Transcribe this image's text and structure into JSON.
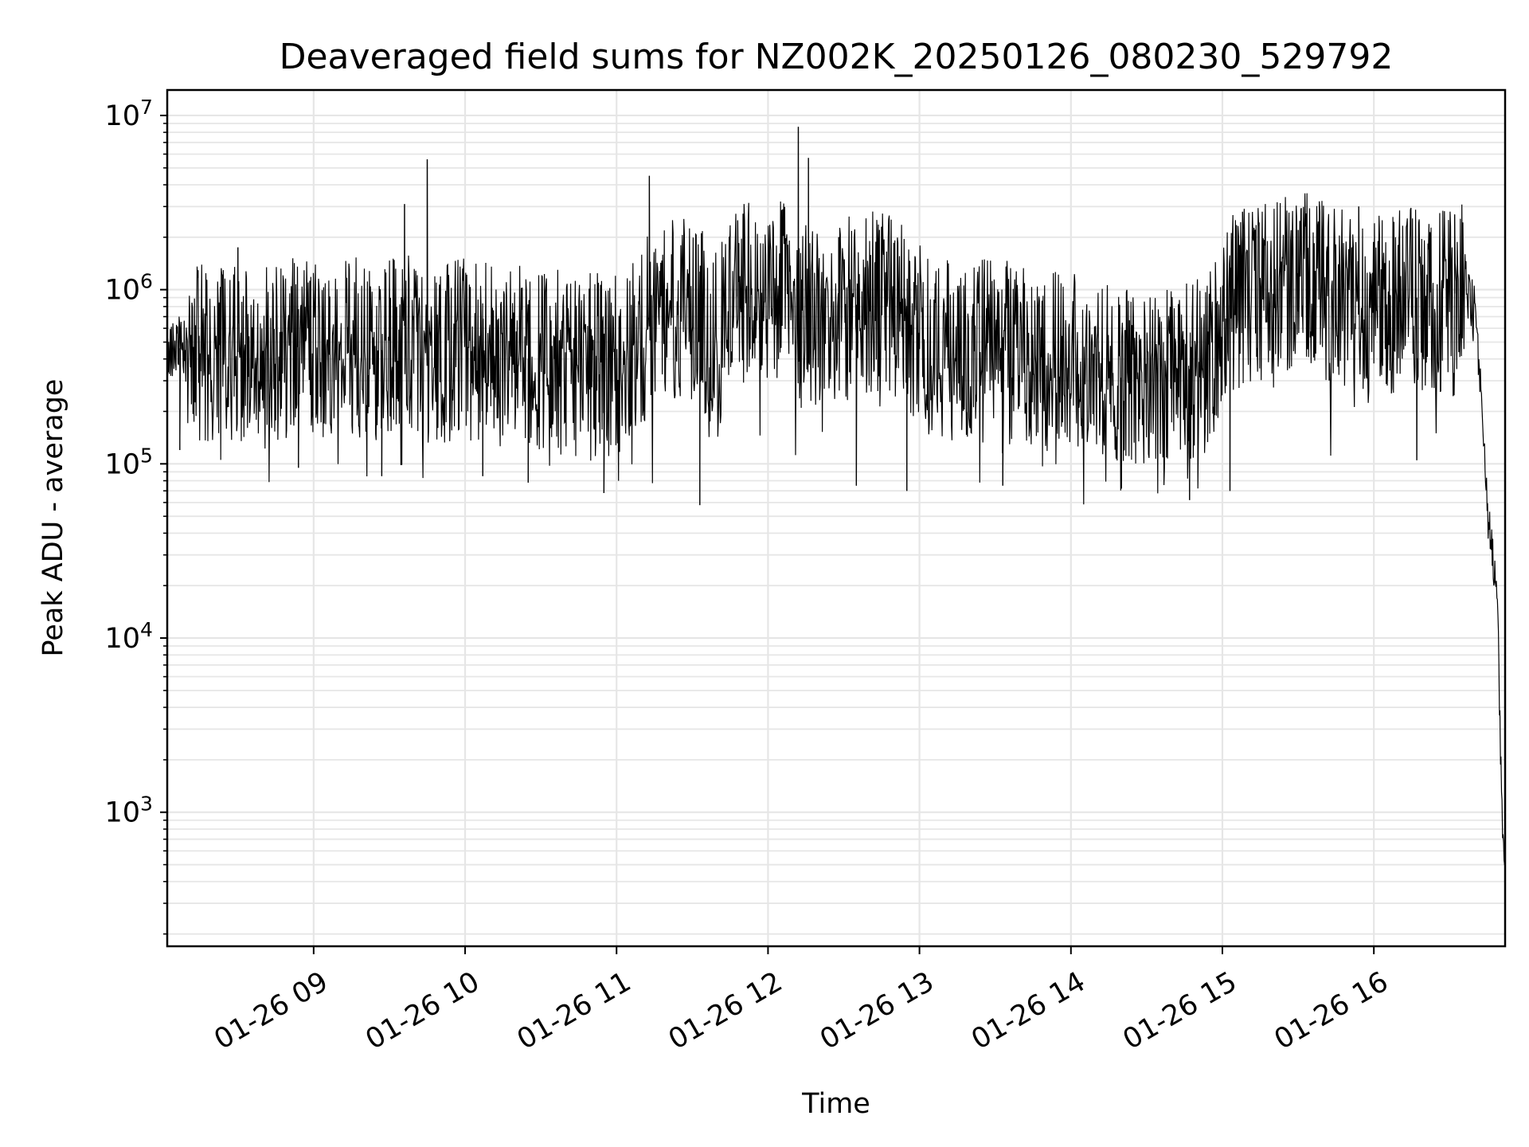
{
  "chart_data": {
    "type": "line",
    "title": "Deaveraged field sums for NZ002K_20250126_080230_529792",
    "xlabel": "Time",
    "ylabel": "Peak ADU - average",
    "yscale": "log",
    "grid": true,
    "line_color": "#000000",
    "grid_color": "#e6e6e6",
    "xlim": [
      "2025-01-26 08:02",
      "2025-01-26 16:52"
    ],
    "ylim": [
      170,
      14000000
    ],
    "x_ticks": [
      "01-26 09",
      "01-26 10",
      "01-26 11",
      "01-26 12",
      "01-26 13",
      "01-26 14",
      "01-26 15",
      "01-26 16"
    ],
    "x_tick_times": [
      "2025-01-26 09:00",
      "2025-01-26 10:00",
      "2025-01-26 11:00",
      "2025-01-26 12:00",
      "2025-01-26 13:00",
      "2025-01-26 14:00",
      "2025-01-26 15:00",
      "2025-01-26 16:00"
    ],
    "y_ticks": [
      {
        "value": 1000,
        "base": "10",
        "exp": "3"
      },
      {
        "value": 10000,
        "base": "10",
        "exp": "4"
      },
      {
        "value": 100000,
        "base": "10",
        "exp": "5"
      },
      {
        "value": 1000000,
        "base": "10",
        "exp": "6"
      },
      {
        "value": 10000000,
        "base": "10",
        "exp": "7"
      }
    ],
    "series": [
      {
        "x": [
          "2025-01-26 08:02",
          "2025-01-26 08:10",
          "2025-01-26 08:17",
          "2025-01-26 08:20",
          "2025-01-26 08:25",
          "2025-01-26 08:32",
          "2025-01-26 08:40",
          "2025-01-26 08:47",
          "2025-01-26 08:55",
          "2025-01-26 09:02",
          "2025-01-26 09:10",
          "2025-01-26 09:17",
          "2025-01-26 09:25",
          "2025-01-26 09:32",
          "2025-01-26 09:36",
          "2025-01-26 09:40",
          "2025-01-26 09:44",
          "2025-01-26 09:50",
          "2025-01-26 09:57",
          "2025-01-26 10:05",
          "2025-01-26 10:12",
          "2025-01-26 10:20",
          "2025-01-26 10:27",
          "2025-01-26 10:35",
          "2025-01-26 10:42",
          "2025-01-26 10:50",
          "2025-01-26 10:57",
          "2025-01-26 11:05",
          "2025-01-26 11:12",
          "2025-01-26 11:18",
          "2025-01-26 11:25",
          "2025-01-26 11:32",
          "2025-01-26 11:40",
          "2025-01-26 11:47",
          "2025-01-26 11:55",
          "2025-01-26 12:02",
          "2025-01-26 12:10",
          "2025-01-26 12:13",
          "2025-01-26 12:17",
          "2025-01-26 12:25",
          "2025-01-26 12:32",
          "2025-01-26 12:40",
          "2025-01-26 12:47",
          "2025-01-26 12:55",
          "2025-01-26 13:02",
          "2025-01-26 13:10",
          "2025-01-26 13:17",
          "2025-01-26 13:25",
          "2025-01-26 13:32",
          "2025-01-26 13:40",
          "2025-01-26 13:47",
          "2025-01-26 13:55",
          "2025-01-26 14:02",
          "2025-01-26 14:10",
          "2025-01-26 14:17",
          "2025-01-26 14:25",
          "2025-01-26 14:32",
          "2025-01-26 14:40",
          "2025-01-26 14:47",
          "2025-01-26 14:55",
          "2025-01-26 15:02",
          "2025-01-26 15:10",
          "2025-01-26 15:17",
          "2025-01-26 15:25",
          "2025-01-26 15:32",
          "2025-01-26 15:40",
          "2025-01-26 15:47",
          "2025-01-26 15:55",
          "2025-01-26 16:02",
          "2025-01-26 16:10",
          "2025-01-26 16:17",
          "2025-01-26 16:25",
          "2025-01-26 16:32",
          "2025-01-26 16:36",
          "2025-01-26 16:39",
          "2025-01-26 16:41",
          "2025-01-26 16:43",
          "2025-01-26 16:45",
          "2025-01-26 16:47",
          "2025-01-26 16:49",
          "2025-01-26 16:50",
          "2025-01-26 16:51",
          "2025-01-26 16:52"
        ],
        "y": [
          480000,
          450000,
          420000,
          380000,
          460000,
          430000,
          400000,
          440000,
          470000,
          420000,
          450000,
          480000,
          430000,
          500000,
          620000,
          470000,
          380000,
          420000,
          460000,
          440000,
          410000,
          430000,
          390000,
          420000,
          350000,
          380000,
          360000,
          420000,
          600000,
          700000,
          800000,
          750000,
          500000,
          900000,
          1000000,
          1050000,
          850000,
          700000,
          750000,
          650000,
          800000,
          850000,
          900000,
          700000,
          500000,
          450000,
          420000,
          480000,
          450000,
          420000,
          400000,
          380000,
          390000,
          350000,
          320000,
          300000,
          280000,
          320000,
          350000,
          380000,
          800000,
          900000,
          950000,
          1100000,
          1200000,
          1000000,
          900000,
          850000,
          800000,
          850000,
          900000,
          800000,
          950000,
          1100000,
          850000,
          500000,
          200000,
          50000,
          30000,
          15000,
          3000,
          800,
          420
        ]
      }
    ],
    "spikes": [
      {
        "x": "2025-01-26 08:07",
        "y": 120000
      },
      {
        "x": "2025-01-26 08:30",
        "y": 1750000
      },
      {
        "x": "2025-01-26 08:54",
        "y": 95000
      },
      {
        "x": "2025-01-26 09:27",
        "y": 85000
      },
      {
        "x": "2025-01-26 09:36",
        "y": 3100000
      },
      {
        "x": "2025-01-26 09:45",
        "y": 5600000
      },
      {
        "x": "2025-01-26 10:07",
        "y": 85000
      },
      {
        "x": "2025-01-26 10:25",
        "y": 78000
      },
      {
        "x": "2025-01-26 10:55",
        "y": 68000
      },
      {
        "x": "2025-01-26 11:13",
        "y": 4500000
      },
      {
        "x": "2025-01-26 11:33",
        "y": 58000
      },
      {
        "x": "2025-01-26 11:48",
        "y": 2500000
      },
      {
        "x": "2025-01-26 12:12",
        "y": 8600000
      },
      {
        "x": "2025-01-26 12:16",
        "y": 5700000
      },
      {
        "x": "2025-01-26 12:28",
        "y": 2000000
      },
      {
        "x": "2025-01-26 12:35",
        "y": 75000
      },
      {
        "x": "2025-01-26 12:55",
        "y": 70000
      },
      {
        "x": "2025-01-26 13:33",
        "y": 75000
      },
      {
        "x": "2025-01-26 14:20",
        "y": 72000
      },
      {
        "x": "2025-01-26 14:47",
        "y": 62000
      },
      {
        "x": "2025-01-26 15:03",
        "y": 70000
      },
      {
        "x": "2025-01-26 15:08",
        "y": 2800000
      },
      {
        "x": "2025-01-26 15:30",
        "y": 2200000
      },
      {
        "x": "2025-01-26 15:54",
        "y": 3000000
      },
      {
        "x": "2025-01-26 16:10",
        "y": 2000000
      },
      {
        "x": "2025-01-26 16:17",
        "y": 105000
      },
      {
        "x": "2025-01-26 16:32",
        "y": 2700000
      }
    ]
  }
}
